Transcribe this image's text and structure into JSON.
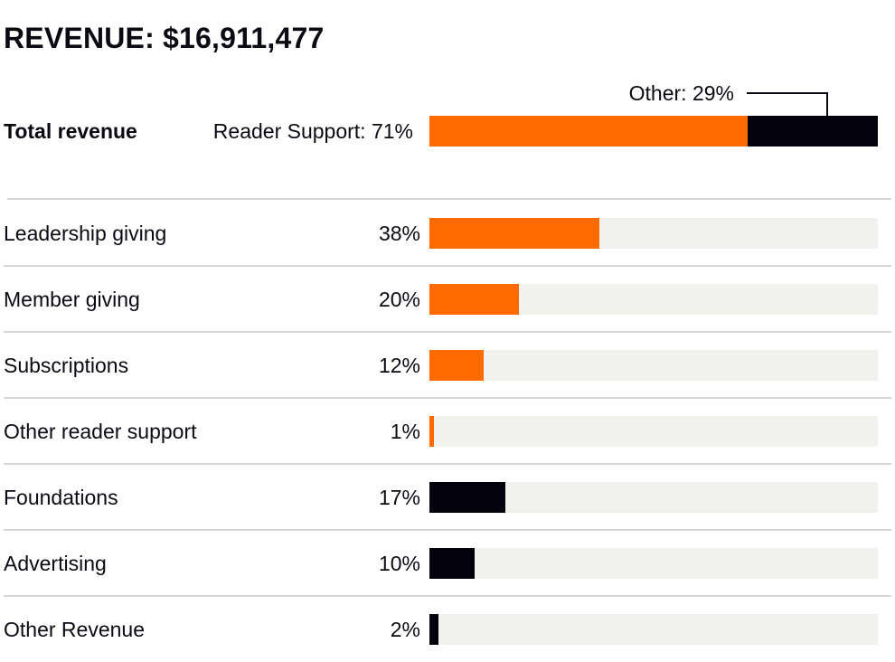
{
  "colors": {
    "reader_support": "#ff6b00",
    "other": "#03020c",
    "track": "#f1f1ee",
    "divider": "#d6d6d6"
  },
  "chart_data": {
    "type": "bar",
    "orientation": "horizontal",
    "title": "REVENUE: $16,911,477",
    "xlim": [
      0,
      100
    ],
    "unit": "%",
    "total": {
      "label": "Total revenue",
      "segments": [
        {
          "name": "Reader Support",
          "label": "Reader Support: 71%",
          "value": 71,
          "group": "reader_support"
        },
        {
          "name": "Other",
          "label": "Other: 29%",
          "value": 29,
          "group": "other"
        }
      ]
    },
    "categories": [
      "Leadership giving",
      "Member giving",
      "Subscriptions",
      "Other reader support",
      "Foundations",
      "Advertising",
      "Other Revenue"
    ],
    "values": [
      38,
      20,
      12,
      1,
      17,
      10,
      2
    ],
    "value_labels": [
      "38%",
      "20%",
      "12%",
      "1%",
      "17%",
      "10%",
      "2%"
    ],
    "groups": [
      "reader_support",
      "reader_support",
      "reader_support",
      "reader_support",
      "other",
      "other",
      "other"
    ]
  }
}
